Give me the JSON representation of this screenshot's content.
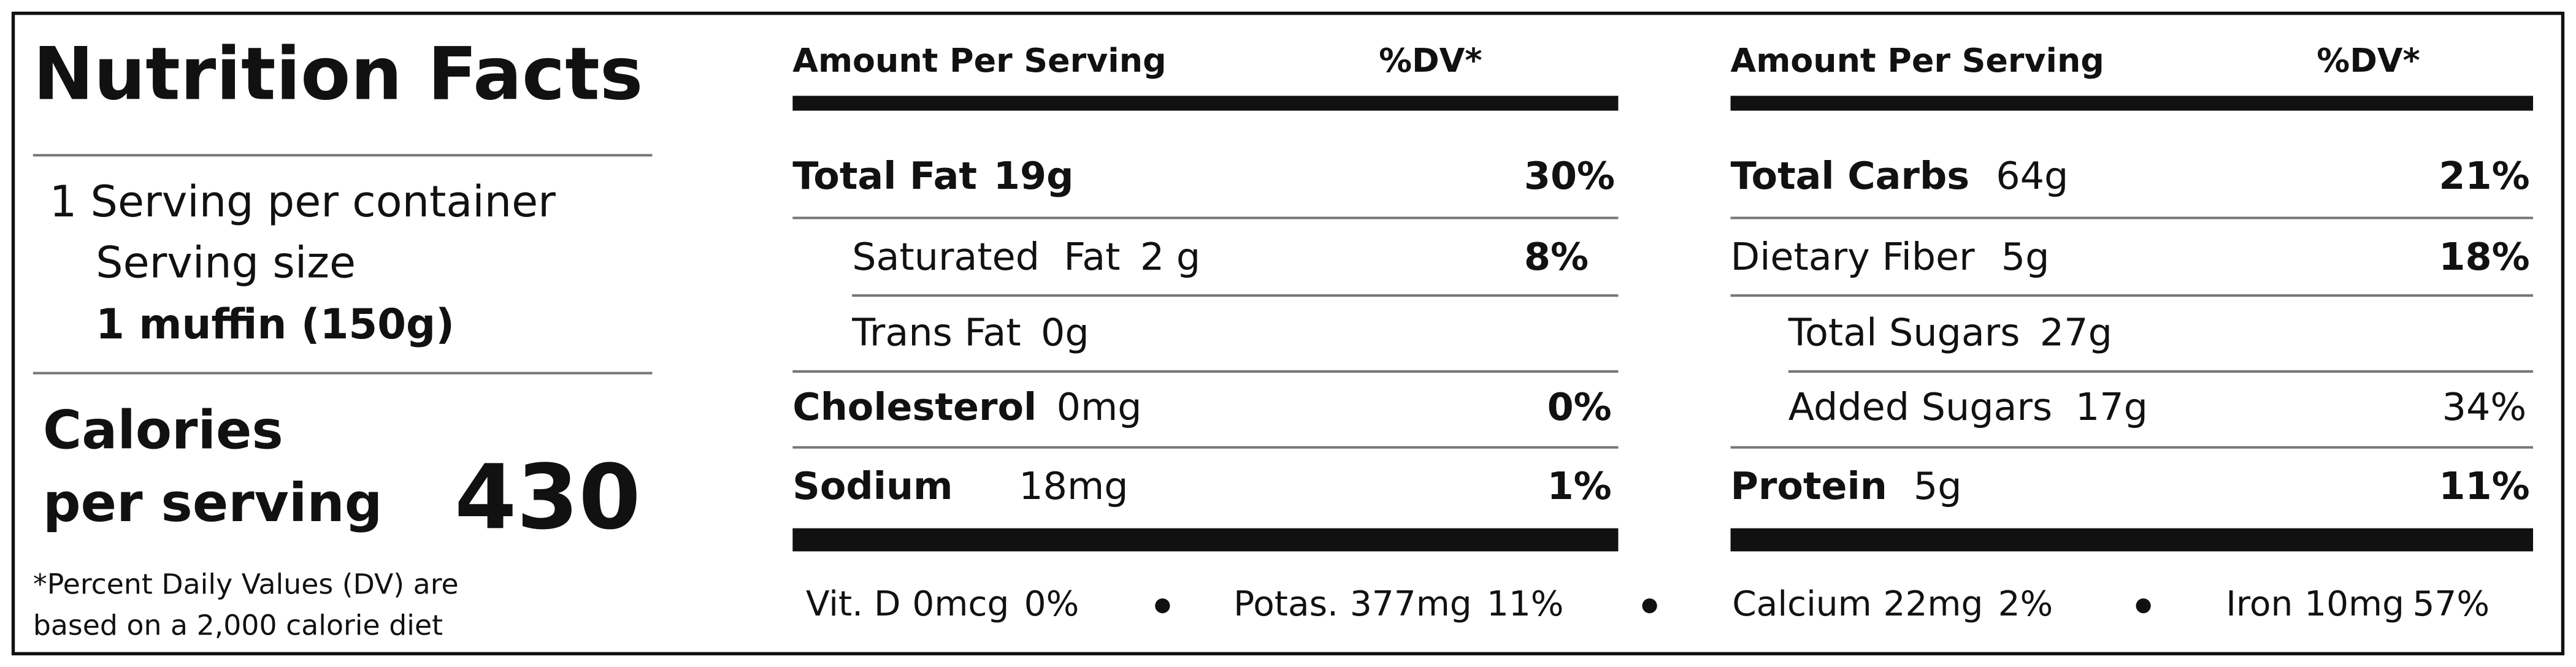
{
  "header": {
    "title": "Nutrition Facts"
  },
  "serving": {
    "per_container": "1 Serving per container",
    "size_label": "Serving size",
    "size": "1 muffin (150g)"
  },
  "calories": {
    "label_line1": "Calories",
    "label_line2": "per serving",
    "value": "430"
  },
  "footnote": [
    "*Percent Daily Values (DV) are",
    "based on a 2,000 calorie diet"
  ],
  "columns": [
    {
      "header_amount": "Amount Per Serving",
      "header_dv": "%DV*",
      "rows": [
        {
          "name": "Total Fat",
          "amount": "19g",
          "dv": "30%"
        },
        {
          "name": "Saturated  Fat",
          "amount": "2 g",
          "dv": "8%"
        },
        {
          "name": "Trans Fat",
          "amount": "0g"
        },
        {
          "name": "Cholesterol",
          "amount": "0mg",
          "dv": "0%"
        },
        {
          "name": "Sodium",
          "amount": "18mg",
          "dv": "1%"
        }
      ]
    },
    {
      "header_amount": "Amount Per Serving",
      "header_dv": "%DV*",
      "rows": [
        {
          "name": "Total Carbs",
          "amount": "64g",
          "dv": "21%"
        },
        {
          "name": "Dietary Fiber",
          "amount": "5g",
          "dv": "18%"
        },
        {
          "name": "Total Sugars",
          "amount": "27g"
        },
        {
          "name": "Added Sugars",
          "amount": "17g",
          "dv": "34%"
        },
        {
          "name": "Protein",
          "amount": "5g",
          "dv": "11%"
        }
      ]
    }
  ],
  "vitamins": [
    {
      "name": "Vit. D",
      "amount": "0mcg",
      "dv": "0%"
    },
    {
      "name": "Potas.",
      "amount": "377mg",
      "dv": "11%"
    },
    {
      "name": "Calcium",
      "amount": "22mg",
      "dv": "2%"
    },
    {
      "name": "Iron",
      "amount": "10mg",
      "dv": "57%"
    }
  ]
}
